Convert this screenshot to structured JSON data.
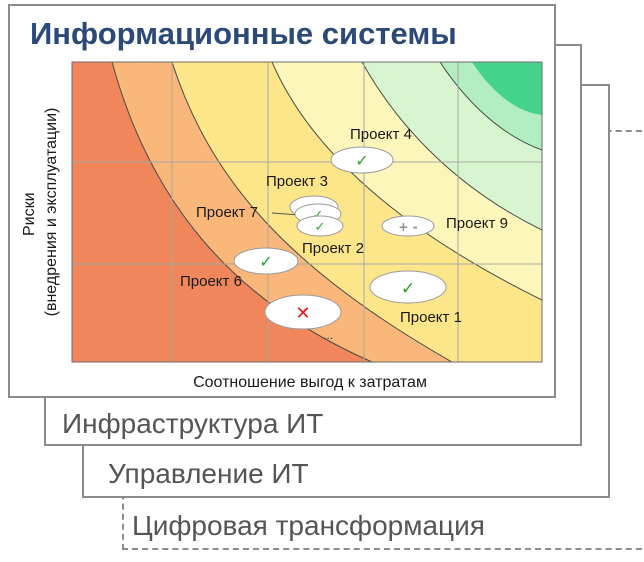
{
  "title": "Информационные системы",
  "layers": {
    "infrastructure": "Инфраструктура ИТ",
    "management": "Управление ИТ",
    "digital": "Цифровая трансформация"
  },
  "axes": {
    "x_label": "Соотношение выгод к затратам",
    "y_label_line1": "Риски",
    "y_label_line2": "(внедрения и эксплуатации)"
  },
  "zones": {
    "colors": [
      "#f0865a",
      "#f9b77a",
      "#fde68a",
      "#fdf6ba",
      "#d7f5cf",
      "#b3eec1",
      "#45d389"
    ]
  },
  "projects": [
    {
      "id": "project-4",
      "label": "Проект 4",
      "status": "approved",
      "mark": "✓"
    },
    {
      "id": "project-3",
      "label": "Проект 3",
      "status": "approved",
      "mark": "✓"
    },
    {
      "id": "project-7",
      "label": "Проект 7",
      "status": "approved",
      "mark": "✓"
    },
    {
      "id": "project-2",
      "label": "Проект 2",
      "status": "approved",
      "mark": "✓"
    },
    {
      "id": "project-9",
      "label": "Проект 9",
      "status": "neutral",
      "mark": "+ -"
    },
    {
      "id": "project-6",
      "label": "Проект 6",
      "status": "approved",
      "mark": "✓"
    },
    {
      "id": "project-1",
      "label": "Проект 1",
      "status": "approved",
      "mark": "✓"
    },
    {
      "id": "project-rejected",
      "label": "...",
      "status": "rejected",
      "mark": "✕"
    }
  ],
  "status_colors": {
    "approved": "#2aa12a",
    "rejected": "#e01a1a",
    "neutral": "#8a8a8a"
  }
}
